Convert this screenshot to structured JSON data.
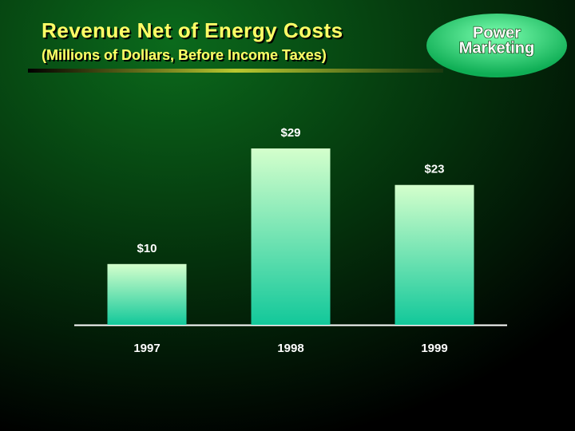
{
  "chart_data": {
    "type": "bar",
    "title": "Revenue Net of Energy Costs",
    "subtitle": "(Millions of Dollars, Before Income Taxes)",
    "annotations": [
      "Power",
      "Marketing"
    ],
    "categories": [
      "1997",
      "1998",
      "1999"
    ],
    "values": [
      10,
      29,
      23
    ],
    "value_labels": [
      "$10",
      "$29",
      "$23"
    ],
    "color": [
      "#d4ffcc",
      "#12c89a"
    ]
  }
}
